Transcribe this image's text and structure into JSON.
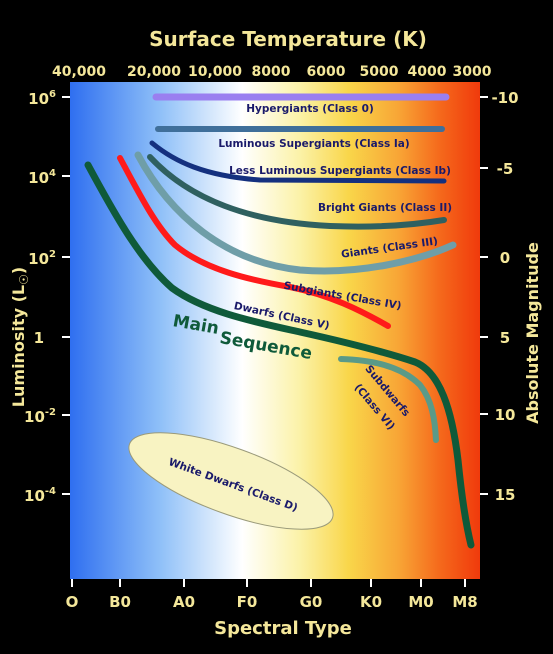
{
  "title_top": "Surface Temperature (K)",
  "xlabel_bottom": "Spectral Type",
  "ylabel_left": "Luminosity (L",
  "ylabel_left_suffix": ")",
  "ylabel_right": "Absolute Magnitude",
  "temperature_ticks": [
    "40,000",
    "20,000",
    "10,000",
    "8000",
    "6000",
    "5000",
    "4000",
    "3000"
  ],
  "spectral_ticks": [
    "O",
    "B0",
    "A0",
    "F0",
    "G0",
    "K0",
    "M0",
    "M8"
  ],
  "luminosity_ticks": [
    {
      "base": "10",
      "exp": "6"
    },
    {
      "base": "10",
      "exp": "4"
    },
    {
      "base": "10",
      "exp": "2"
    },
    {
      "base": "1",
      "exp": ""
    },
    {
      "base": "10",
      "exp": "-2"
    },
    {
      "base": "10",
      "exp": "-4"
    }
  ],
  "magnitude_ticks": [
    "-10",
    "-5",
    "0",
    "5",
    "10",
    "15"
  ],
  "classes": {
    "hypergiants": "Hypergiants (Class 0)",
    "luminous_supergiants": "Luminous Supergiants (Class Ia)",
    "less_luminous_supergiants": "Less Luminous Supergiants (Class Ib)",
    "bright_giants": "Bright Giants (Class II)",
    "giants": "Giants (Class III)",
    "subgiants": "Subgiants (Class IV)",
    "dwarfs": "Dwarfs (Class V)",
    "main_sequence_1": "Main",
    "main_sequence_2": "Sequence",
    "subdwarfs_1": "Subdwarfs",
    "subdwarfs_2": "(Class VI)",
    "white_dwarfs": "White Dwarfs (Class D)"
  },
  "colors": {
    "hypergiants": "#9a7ff0",
    "luminous_supergiants": "#3f6f9a",
    "less_luminous_supergiants": "#14307f",
    "bright_giants": "#2f6060",
    "giants": "#6f9ea8",
    "subgiants": "#ff1a1a",
    "main_sequence": "#0f5a3a",
    "subdwarfs": "#5a9a88",
    "white_dwarf_fill": "#f8f3c2",
    "axis_text": "#f4e79a"
  }
}
